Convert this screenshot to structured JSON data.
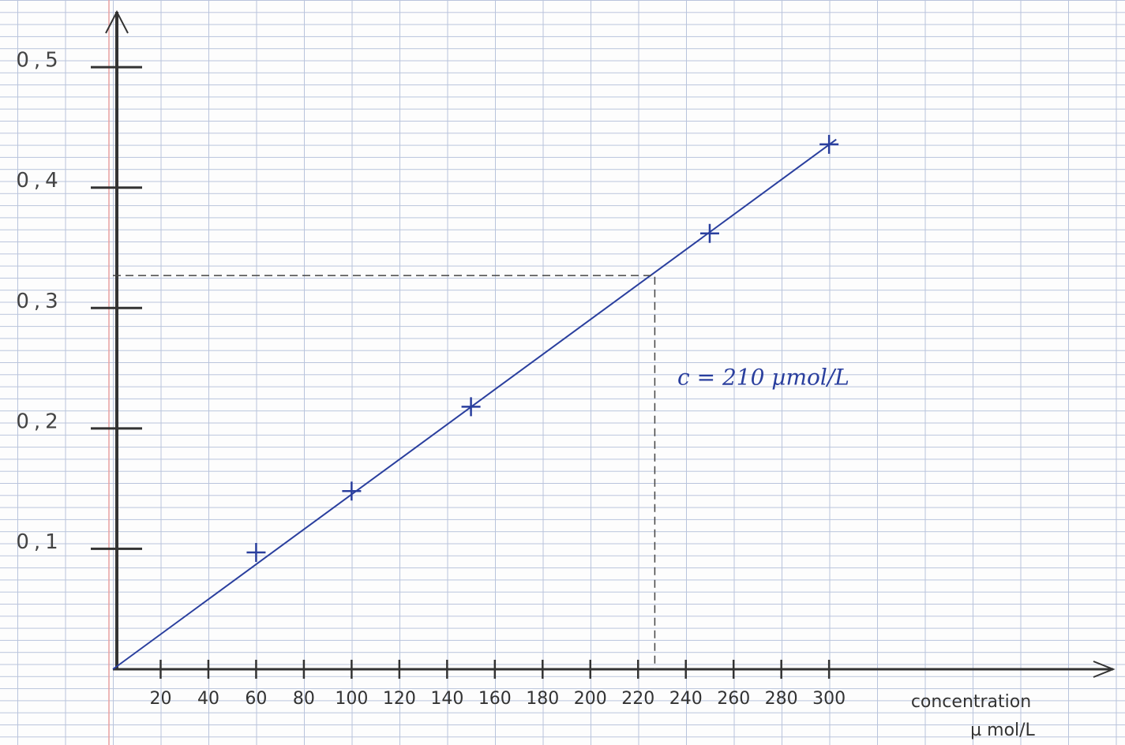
{
  "chart_data": {
    "type": "scatter",
    "x": [
      60,
      100,
      150,
      250,
      300
    ],
    "values": [
      0.097,
      0.148,
      0.218,
      0.362,
      0.436
    ],
    "color": "#2a3f9e",
    "fit_line": {
      "x": [
        0,
        303
      ],
      "y": [
        0,
        0.44
      ]
    },
    "xlim": [
      0,
      419
    ],
    "ylim": [
      0,
      0.546
    ],
    "xticks": [
      20,
      40,
      60,
      80,
      100,
      120,
      140,
      160,
      180,
      200,
      220,
      240,
      260,
      280,
      300
    ],
    "yticks": [
      {
        "value": 0.1,
        "label": "0,1"
      },
      {
        "value": 0.2,
        "label": "0,2"
      },
      {
        "value": 0.3,
        "label": "0,3"
      },
      {
        "value": 0.4,
        "label": "0,4"
      },
      {
        "value": 0.5,
        "label": "0,5"
      }
    ],
    "xlabel": "concentration",
    "xlabel_unit": "µ mol/L",
    "annotation": {
      "text": "c = 210 µmol/L",
      "x": 227,
      "y": 0.327
    }
  }
}
